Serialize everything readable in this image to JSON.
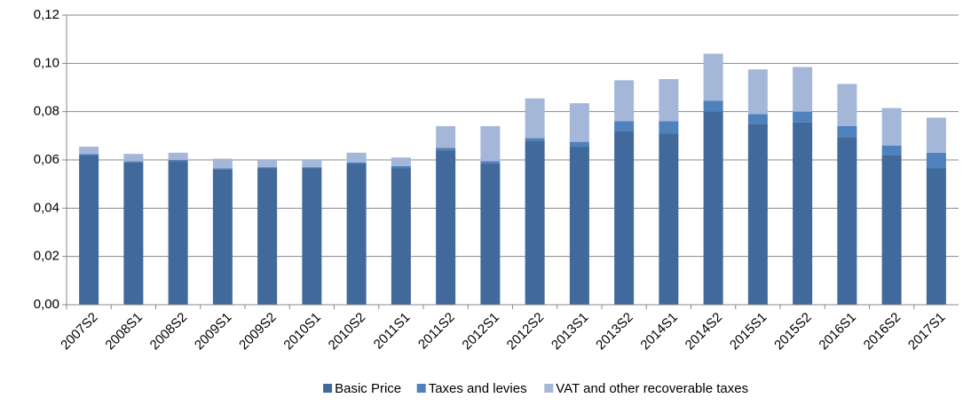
{
  "chart_data": {
    "type": "stacked_bar",
    "categories": [
      "2007S2",
      "2008S1",
      "2008S2",
      "2009S1",
      "2009S2",
      "2010S1",
      "2010S2",
      "2011S1",
      "2011S2",
      "2012S1",
      "2012S2",
      "2013S1",
      "2013S2",
      "2014S1",
      "2014S2",
      "2015S1",
      "2015S2",
      "2016S1",
      "2016S2",
      "2017S1"
    ],
    "series": [
      {
        "name": "Basic Price",
        "color": "#41699b",
        "values": [
          0.062,
          0.059,
          0.0595,
          0.056,
          0.0565,
          0.0565,
          0.0585,
          0.0565,
          0.064,
          0.0585,
          0.068,
          0.0655,
          0.072,
          0.071,
          0.08,
          0.075,
          0.0755,
          0.0695,
          0.062,
          0.0565
        ]
      },
      {
        "name": "Taxes and levies",
        "color": "#4f81bd",
        "values": [
          0.0005,
          0.0005,
          0.0005,
          0.0005,
          0.0005,
          0.0005,
          0.0005,
          0.001,
          0.001,
          0.001,
          0.001,
          0.002,
          0.004,
          0.005,
          0.0045,
          0.004,
          0.0045,
          0.0045,
          0.004,
          0.0065
        ]
      },
      {
        "name": "VAT and other recoverable taxes",
        "color": "#a5b7d9",
        "values": [
          0.003,
          0.003,
          0.003,
          0.004,
          0.003,
          0.003,
          0.004,
          0.0035,
          0.009,
          0.0145,
          0.0165,
          0.016,
          0.017,
          0.0175,
          0.0195,
          0.0185,
          0.0185,
          0.0175,
          0.0155,
          0.0145
        ]
      }
    ],
    "ylim": [
      0,
      0.12
    ],
    "yticks": [
      {
        "value": 0,
        "label": "0,00"
      },
      {
        "value": 0.02,
        "label": "0,02"
      },
      {
        "value": 0.04,
        "label": "0,04"
      },
      {
        "value": 0.06,
        "label": "0,06"
      },
      {
        "value": 0.08,
        "label": "0,08"
      },
      {
        "value": 0.1,
        "label": "0,10"
      },
      {
        "value": 0.12,
        "label": "0,12"
      }
    ],
    "grid": true,
    "legend": "bottom"
  }
}
